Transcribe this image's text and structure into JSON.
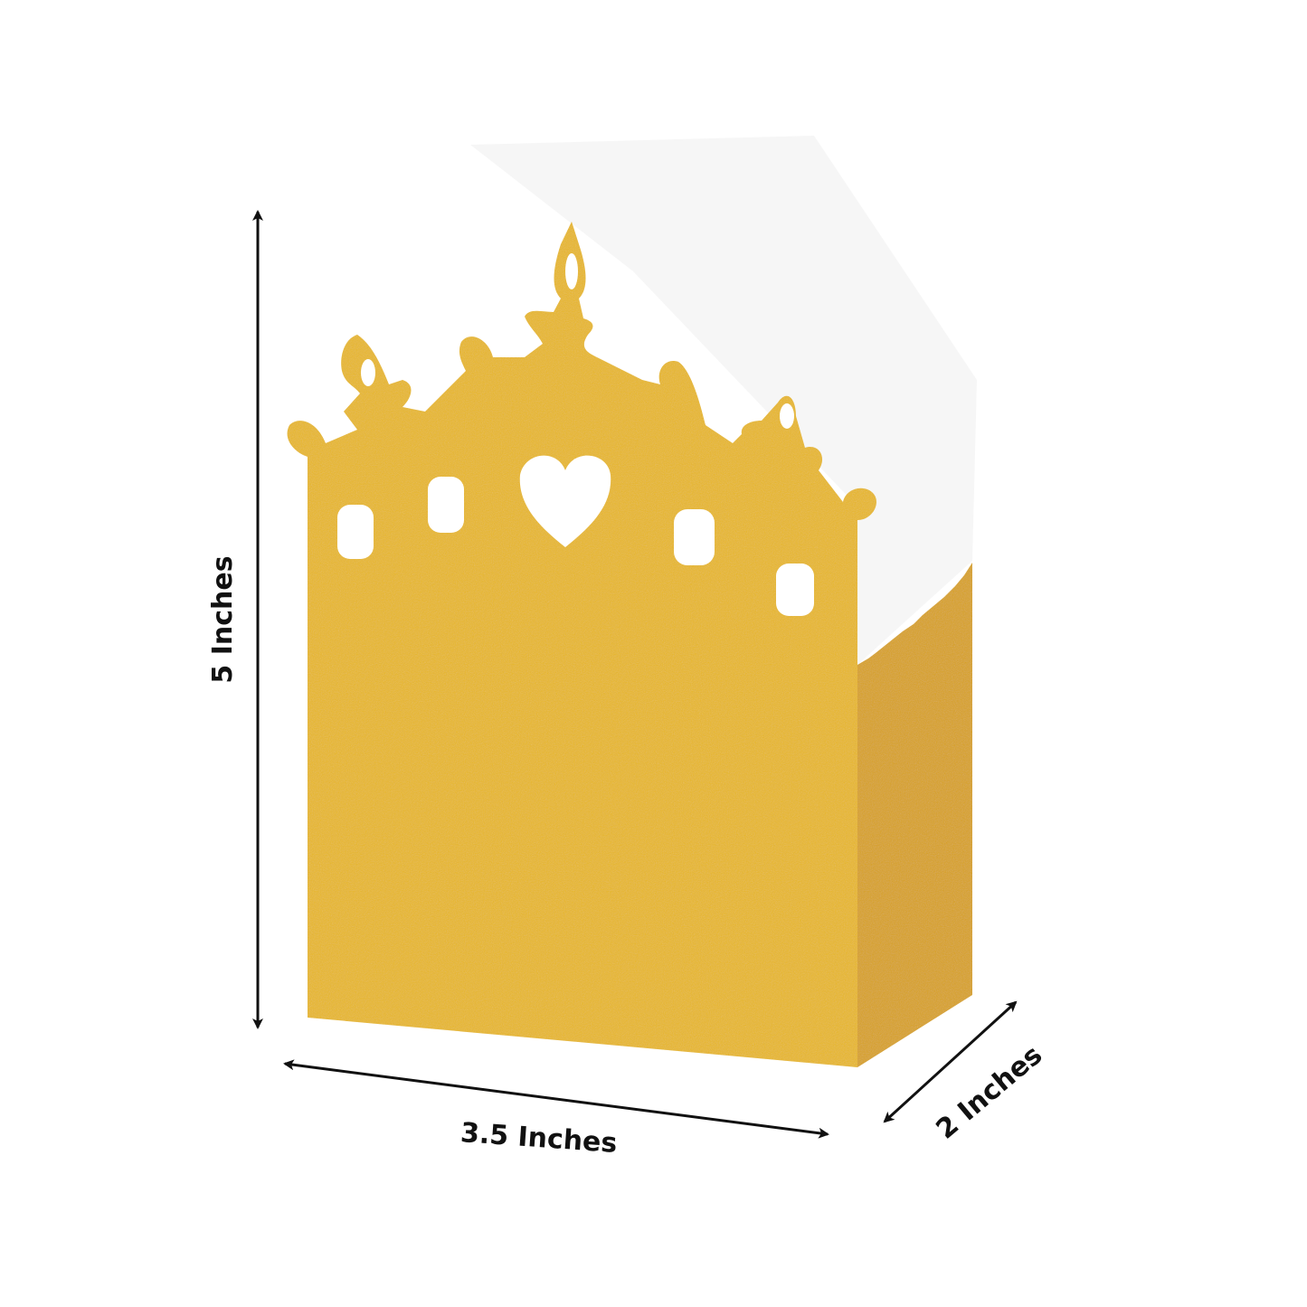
{
  "dimensions": {
    "height_label": "5 Inches",
    "width_label": "3.5 Inches",
    "depth_label": "2 Inches"
  },
  "colors": {
    "gold_front": "#e9b824",
    "gold_side": "#d9a21a",
    "arrow": "#111111",
    "background": "#ffffff"
  }
}
